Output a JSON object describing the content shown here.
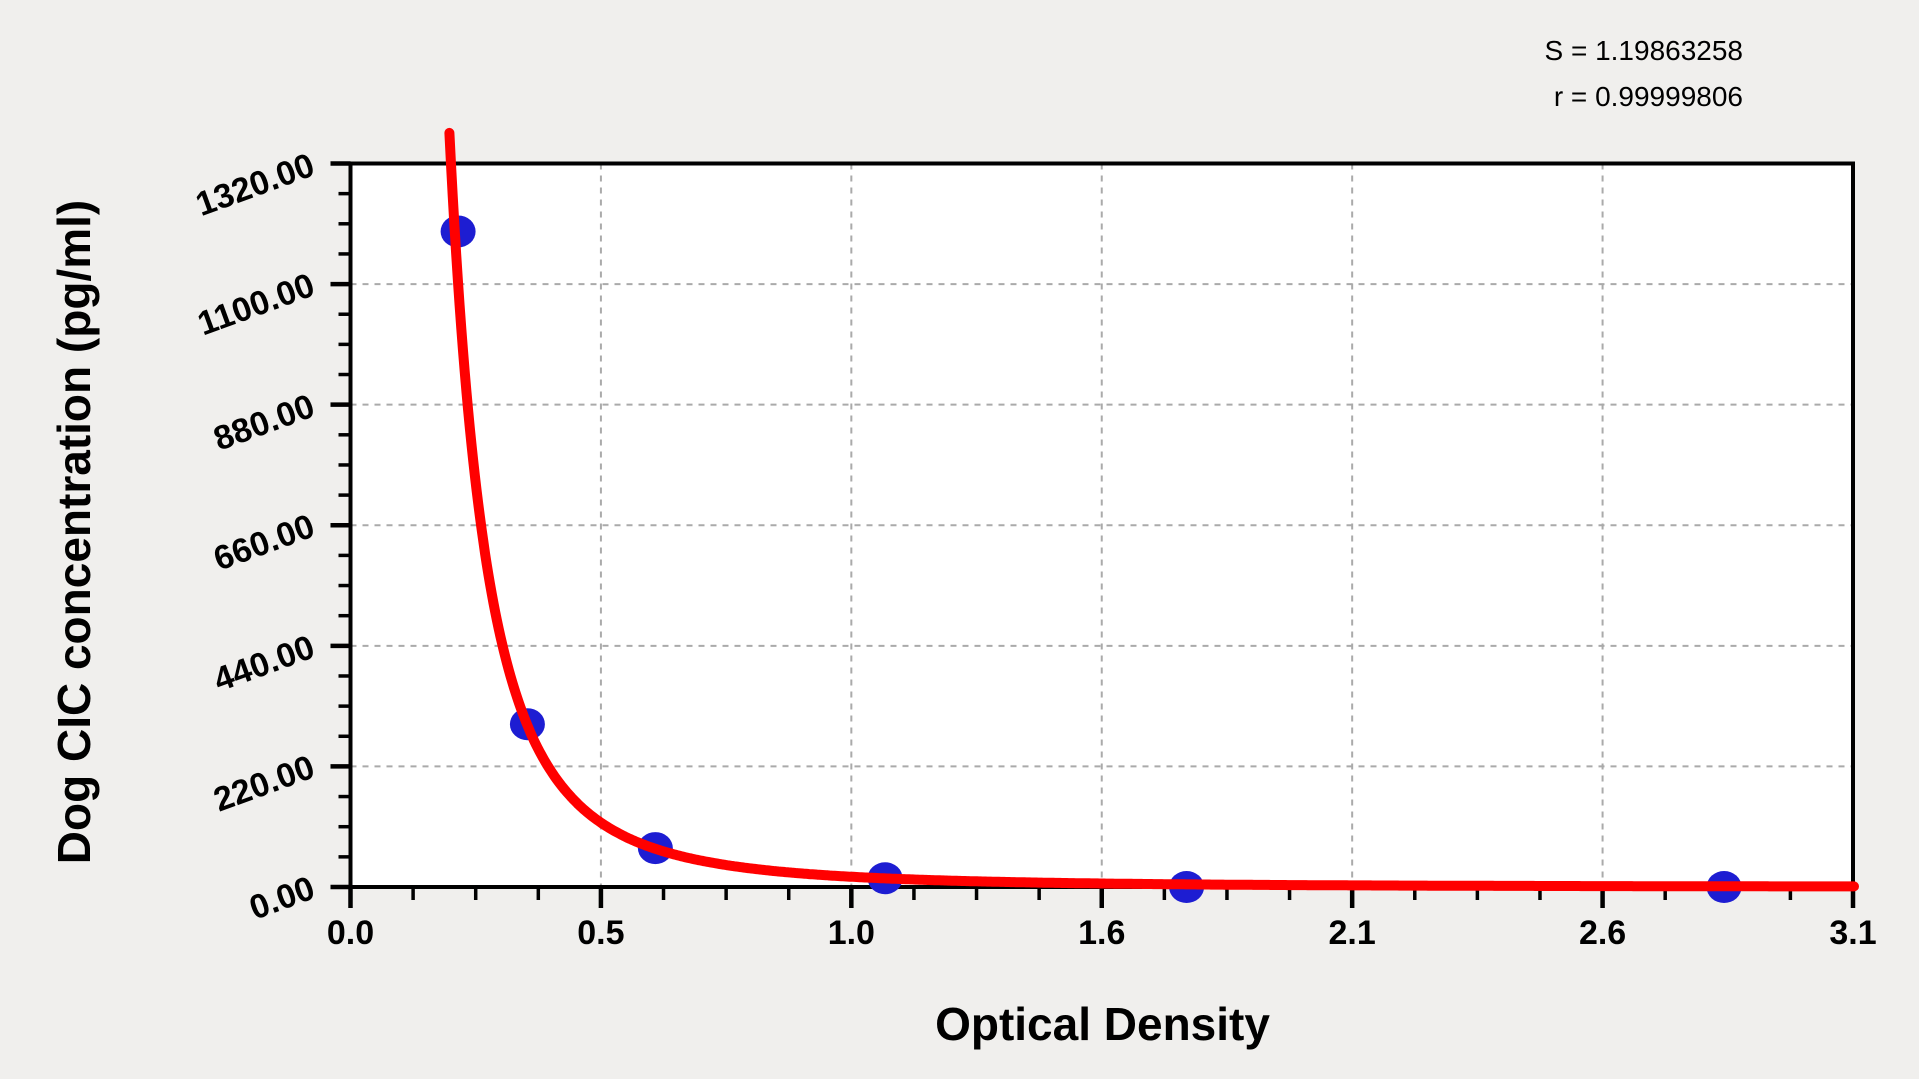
{
  "annotations": {
    "s_line": "S = 1.19863258",
    "r_line": "r = 0.99999806"
  },
  "chart_data": {
    "type": "scatter",
    "title": "",
    "xlabel": "Optical Density",
    "ylabel": "Dog CIC concentration (pg/ml)",
    "x_range": [
      0,
      3.1
    ],
    "y_range": [
      0,
      1320
    ],
    "x_tick_labels": [
      "0.0",
      "0.5",
      "1.0",
      "1.6",
      "2.1",
      "2.6",
      "3.1"
    ],
    "y_tick_labels": [
      "0.00",
      "220.00",
      "440.00",
      "660.00",
      "880.00",
      "1100.00",
      "1320.00"
    ],
    "minor_tick_subdivisions": 4,
    "grid": "dashed",
    "legend": "none",
    "points": [
      {
        "x": 0.222,
        "y": 1196
      },
      {
        "x": 0.365,
        "y": 297
      },
      {
        "x": 0.629,
        "y": 71
      },
      {
        "x": 1.103,
        "y": 16
      },
      {
        "x": 1.725,
        "y": 0
      },
      {
        "x": 2.834,
        "y": 0
      }
    ],
    "fit_curve": {
      "type": "power",
      "equation": "conc = 20.4 * OD^-2.65",
      "k": 20.4,
      "n": 2.65,
      "x_start": 0.2041,
      "x_end": 3.103
    },
    "stats": {
      "S": "1.19863258",
      "r": "0.99999806"
    },
    "colors": {
      "curve": "#ff0000",
      "points": "#1d1dd2",
      "grid": "#aaaaaa",
      "frame": "#000000",
      "plot_bg": "#ffffff",
      "page_bg": "#f0efed",
      "text": "#000000"
    }
  }
}
